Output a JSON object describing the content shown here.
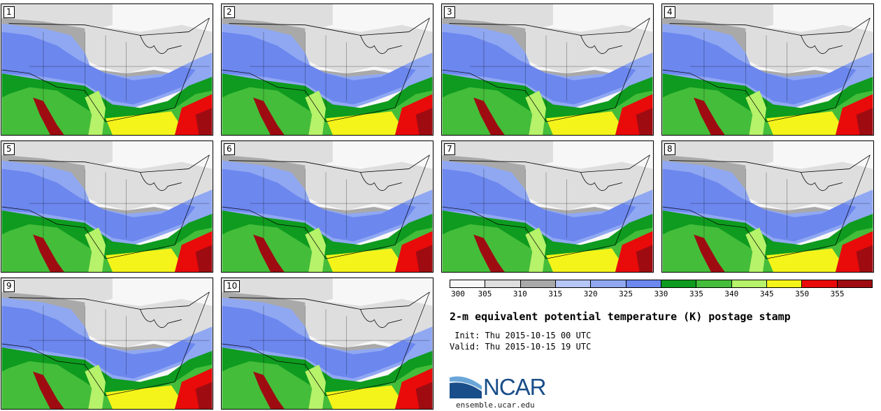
{
  "panels": [
    {
      "label": "1"
    },
    {
      "label": "2"
    },
    {
      "label": "3"
    },
    {
      "label": "4"
    },
    {
      "label": "5"
    },
    {
      "label": "6"
    },
    {
      "label": "7"
    },
    {
      "label": "8"
    },
    {
      "label": "9"
    },
    {
      "label": "10"
    }
  ],
  "colorbar": {
    "colors": [
      "#f7f7f7",
      "#dedede",
      "#a9a9a9",
      "#b6c6f5",
      "#90a8f2",
      "#6c87ee",
      "#0e9b1f",
      "#44bd3a",
      "#b6f26a",
      "#f5f41a",
      "#e90a0a",
      "#9e0c12"
    ],
    "ticks": [
      "300",
      "305",
      "310",
      "315",
      "320",
      "325",
      "330",
      "335",
      "340",
      "345",
      "350",
      "355"
    ]
  },
  "title": "2-m equivalent potential temperature (K) postage stamp",
  "init_line": " Init: Thu 2015-10-15 00 UTC",
  "valid_line": "Valid: Thu 2015-10-15 19 UTC",
  "logo": {
    "name": "NCAR",
    "url": "ensemble.ucar.edu"
  }
}
